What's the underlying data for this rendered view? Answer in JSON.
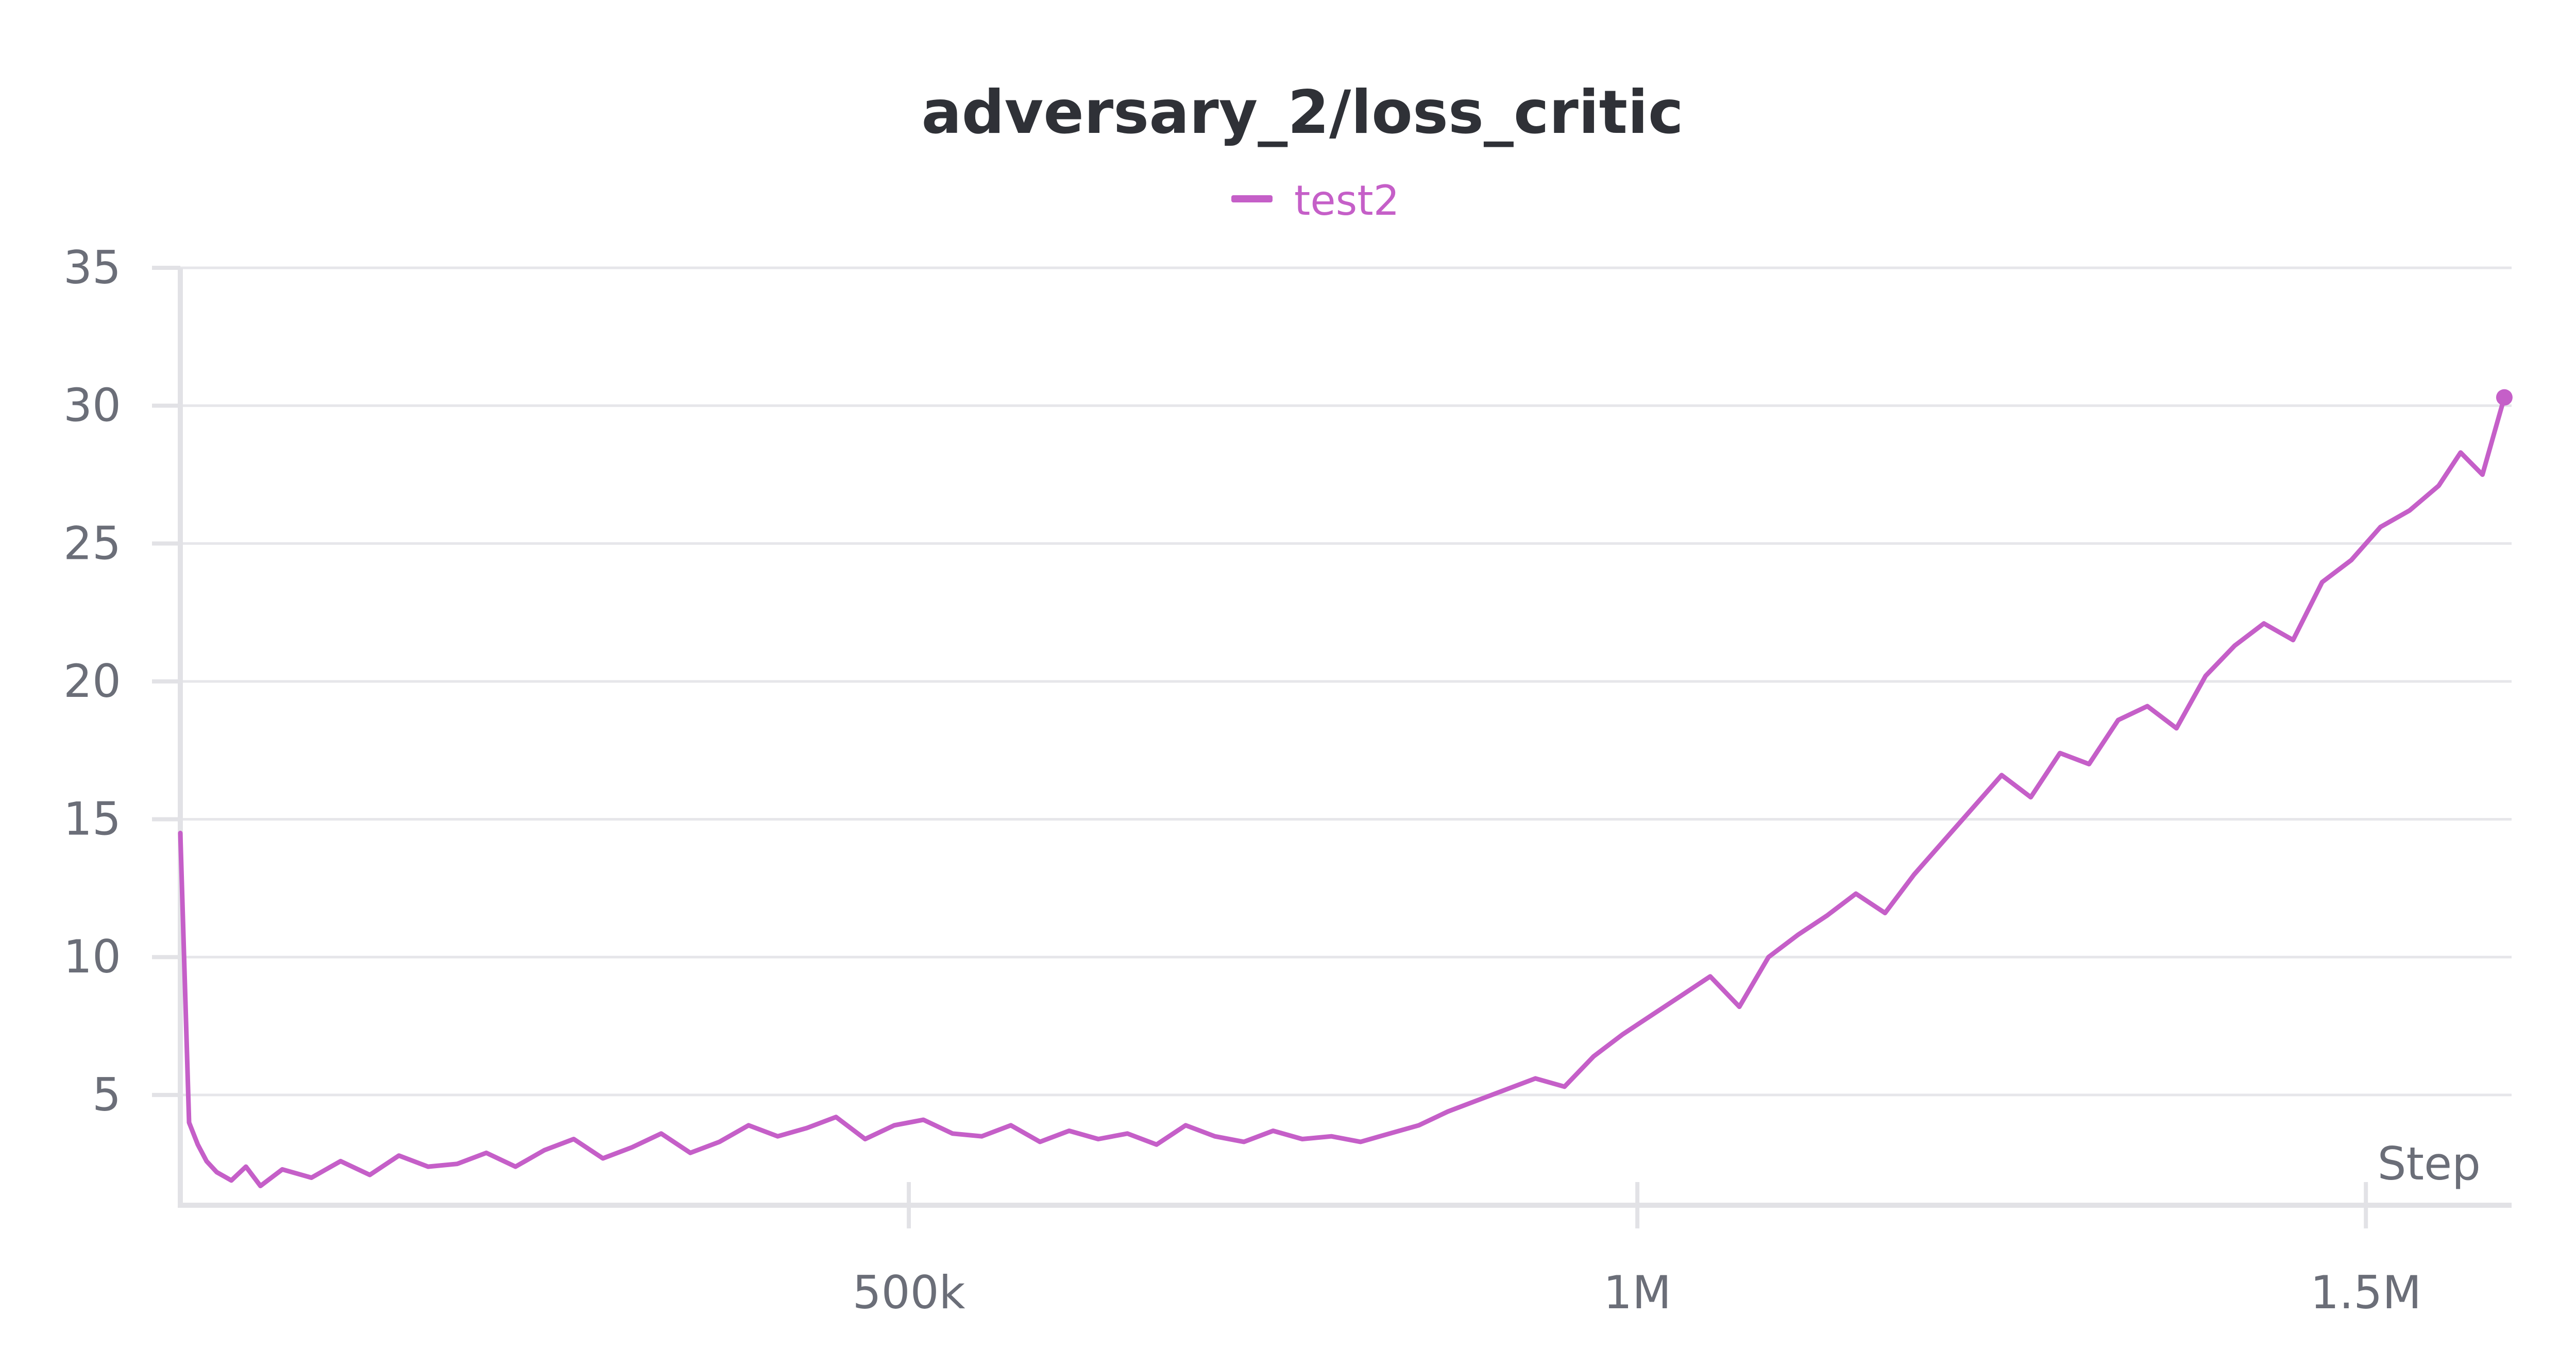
{
  "chart_data": {
    "type": "line",
    "title": "adversary_2/loss_critic",
    "xlabel": "Step",
    "ylabel": "",
    "xlim": [
      0,
      1600000
    ],
    "ylim": [
      1,
      35
    ],
    "x_ticks": [
      {
        "value": 500000,
        "label": "500k"
      },
      {
        "value": 1000000,
        "label": "1M"
      },
      {
        "value": 1500000,
        "label": "1.5M"
      }
    ],
    "y_ticks": [
      {
        "value": 5,
        "label": "5"
      },
      {
        "value": 10,
        "label": "10"
      },
      {
        "value": 15,
        "label": "15"
      },
      {
        "value": 20,
        "label": "20"
      },
      {
        "value": 25,
        "label": "25"
      },
      {
        "value": 30,
        "label": "30"
      },
      {
        "value": 35,
        "label": "35"
      }
    ],
    "grid": true,
    "legend_position": "top-center",
    "series": [
      {
        "name": "test2",
        "color": "#c55fc8",
        "x": [
          0,
          6000,
          12000,
          18000,
          25000,
          35000,
          45000,
          55000,
          70000,
          90000,
          110000,
          130000,
          150000,
          170000,
          190000,
          210000,
          230000,
          250000,
          270000,
          290000,
          310000,
          330000,
          350000,
          370000,
          390000,
          410000,
          430000,
          450000,
          470000,
          490000,
          510000,
          530000,
          550000,
          570000,
          590000,
          610000,
          630000,
          650000,
          670000,
          690000,
          710000,
          730000,
          750000,
          770000,
          790000,
          810000,
          830000,
          850000,
          870000,
          890000,
          910000,
          930000,
          950000,
          970000,
          990000,
          1010000,
          1030000,
          1050000,
          1070000,
          1090000,
          1110000,
          1130000,
          1150000,
          1170000,
          1190000,
          1210000,
          1230000,
          1250000,
          1270000,
          1290000,
          1310000,
          1330000,
          1350000,
          1370000,
          1390000,
          1410000,
          1430000,
          1450000,
          1470000,
          1490000,
          1510000,
          1530000,
          1550000,
          1565000,
          1580000,
          1595000
        ],
        "values": [
          14.5,
          4.0,
          3.2,
          2.6,
          2.2,
          1.9,
          2.4,
          1.7,
          2.3,
          2.0,
          2.6,
          2.1,
          2.8,
          2.4,
          2.5,
          2.9,
          2.4,
          3.0,
          3.4,
          2.7,
          3.1,
          3.6,
          2.9,
          3.3,
          3.9,
          3.5,
          3.8,
          4.2,
          3.4,
          3.9,
          4.1,
          3.6,
          3.5,
          3.9,
          3.3,
          3.7,
          3.4,
          3.6,
          3.2,
          3.9,
          3.5,
          3.3,
          3.7,
          3.4,
          3.5,
          3.3,
          3.6,
          3.9,
          4.4,
          4.8,
          5.2,
          5.6,
          5.3,
          6.4,
          7.2,
          7.9,
          8.6,
          9.3,
          8.2,
          10.0,
          10.8,
          11.5,
          12.3,
          11.6,
          13.0,
          14.2,
          15.4,
          16.6,
          15.8,
          17.4,
          17.0,
          18.6,
          19.1,
          18.3,
          20.2,
          21.3,
          22.1,
          21.5,
          23.6,
          24.4,
          25.6,
          26.2,
          27.1,
          28.3,
          27.5,
          30.3
        ]
      }
    ]
  }
}
